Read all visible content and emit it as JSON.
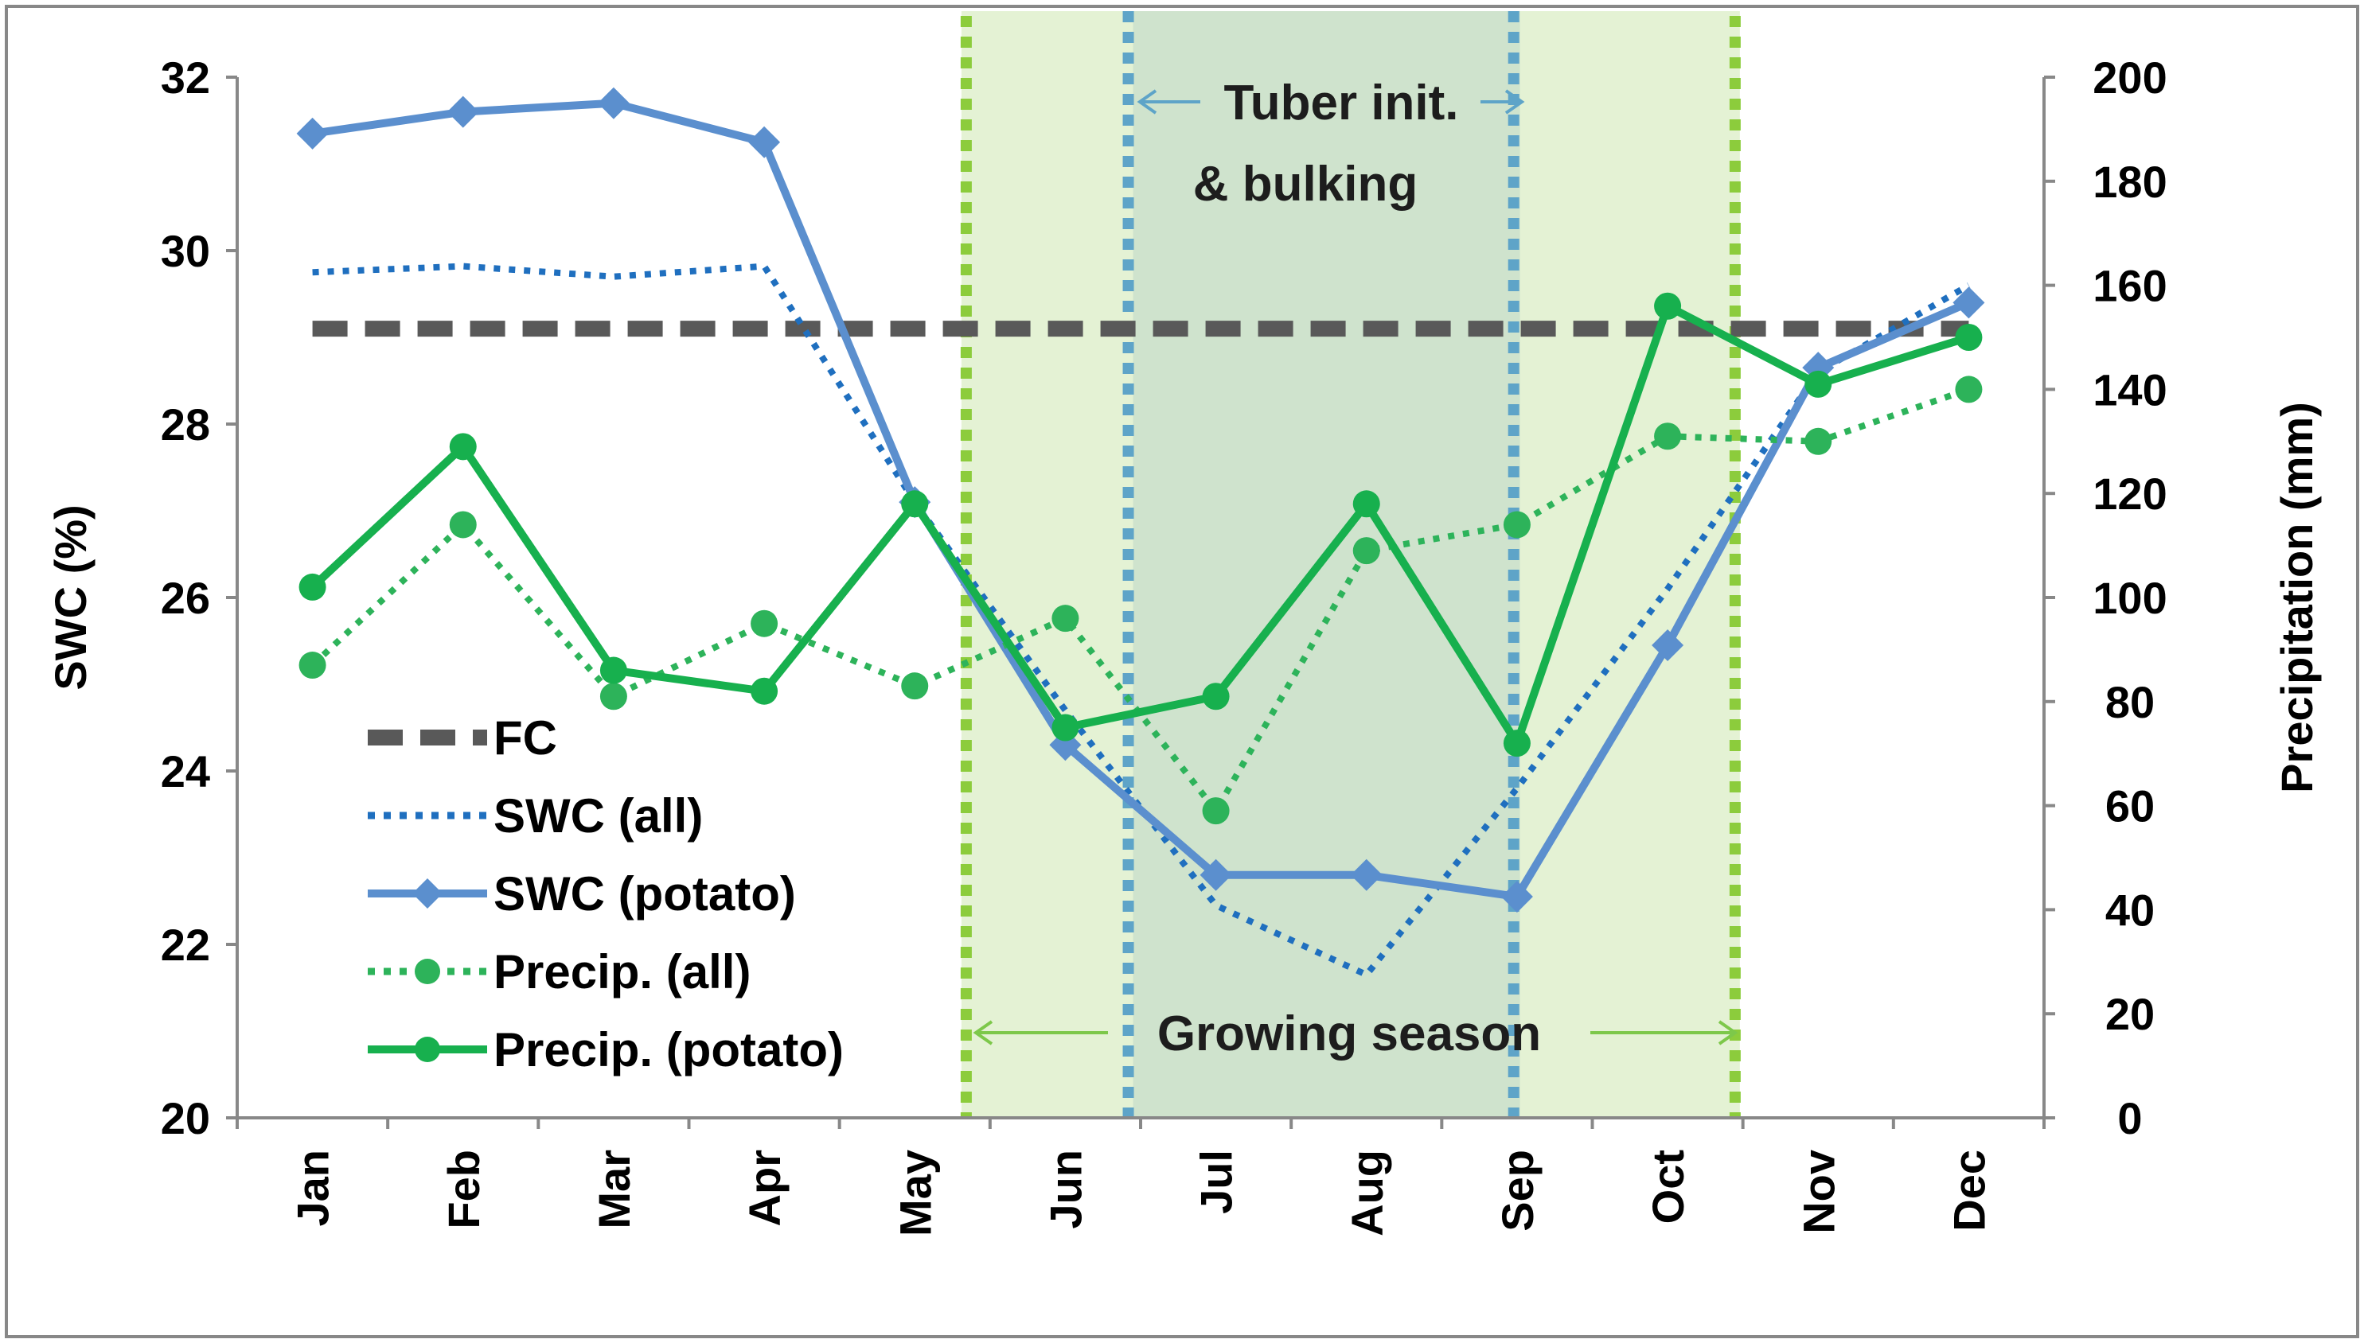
{
  "chart_data": {
    "type": "line",
    "categories": [
      "Jan",
      "Feb",
      "Mar",
      "Apr",
      "May",
      "Jun",
      "Jul",
      "Aug",
      "Sep",
      "Oct",
      "Nov",
      "Dec"
    ],
    "y_left": {
      "label": "SWC (%)",
      "range": [
        20,
        32
      ],
      "ticks": [
        "20",
        "22",
        "24",
        "26",
        "28",
        "30",
        "32"
      ]
    },
    "y_right": {
      "label": "Precipitation (mm)",
      "range": [
        0,
        200
      ],
      "ticks": [
        "0",
        "20",
        "40",
        "60",
        "80",
        "100",
        "120",
        "140",
        "160",
        "180",
        "200"
      ]
    },
    "series": [
      {
        "name": "FC",
        "axis": "left",
        "style": "dashed",
        "color": "#595959",
        "values": [
          29.1,
          29.1,
          29.1,
          29.1,
          29.1,
          29.1,
          29.1,
          29.1,
          29.1,
          29.1,
          29.1,
          29.1
        ]
      },
      {
        "name": "SWC (all)",
        "axis": "left",
        "style": "dotted",
        "color": "#1f6fbf",
        "values": [
          29.75,
          29.82,
          29.7,
          29.82,
          27.1,
          24.7,
          22.45,
          21.65,
          23.8,
          26.1,
          28.6,
          29.6
        ]
      },
      {
        "name": "SWC (potato)",
        "axis": "left",
        "style": "solid-diamond",
        "color": "#5b8fce",
        "values": [
          31.35,
          31.6,
          31.7,
          31.25,
          27.1,
          24.3,
          22.8,
          22.8,
          22.55,
          25.45,
          28.65,
          29.4
        ]
      },
      {
        "name": "Precip. (all)",
        "axis": "right",
        "style": "dotted-circle",
        "color": "#2db35a",
        "values": [
          87,
          114,
          81,
          95,
          83,
          96,
          59,
          109,
          114,
          131,
          130,
          140
        ]
      },
      {
        "name": "Precip. (potato)",
        "axis": "right",
        "style": "solid-circle",
        "color": "#17b04e",
        "values": [
          102,
          129,
          86,
          82,
          118,
          75,
          81,
          118,
          72,
          156,
          141,
          150
        ]
      }
    ],
    "periods": [
      {
        "label": "Growing season",
        "start_month": "mid-May",
        "end_month": "mid-Oct"
      },
      {
        "label_line1": "Tuber init.",
        "label_line2": "& bulking",
        "start_month": "mid-Jun",
        "end_month": "Sep"
      }
    ],
    "legend": "left, lower half"
  },
  "colors": {
    "growing_fill": "#e4f2d4",
    "tuber_fill": "#cfe3cd",
    "growing_border": "#8ccc3c",
    "tuber_border": "#5ea4c8",
    "frame": "#888888"
  }
}
